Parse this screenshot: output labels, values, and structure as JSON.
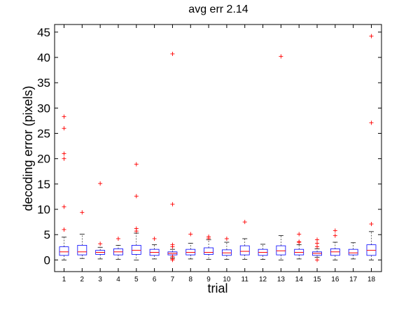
{
  "chart_data": {
    "type": "box",
    "title": "avg err 2.14",
    "xlabel": "trial",
    "ylabel": "decoding error (pixels)",
    "ylim": [
      -2.3,
      46.5
    ],
    "yticks": [
      0,
      5,
      10,
      15,
      20,
      25,
      30,
      35,
      40,
      45
    ],
    "categories": [
      "1",
      "2",
      "3",
      "4",
      "5",
      "6",
      "7",
      "8",
      "9",
      "10",
      "11",
      "12",
      "13",
      "14",
      "15",
      "16",
      "17",
      "18"
    ],
    "boxes": [
      {
        "q1": 0.9,
        "median": 1.6,
        "q3": 2.6,
        "whisker_low": 0,
        "whisker_high": 4.5,
        "outliers": [
          6,
          10.5,
          20,
          21,
          26,
          28.3
        ]
      },
      {
        "q1": 1.0,
        "median": 1.6,
        "q3": 2.9,
        "whisker_low": 0.3,
        "whisker_high": 5.1,
        "outliers": [
          9.4
        ]
      },
      {
        "q1": 1.1,
        "median": 1.5,
        "q3": 1.9,
        "whisker_low": 0.2,
        "whisker_high": 2.5,
        "outliers": [
          3.2,
          15.1
        ]
      },
      {
        "q1": 1.0,
        "median": 1.6,
        "q3": 2.2,
        "whisker_low": 0.1,
        "whisker_high": 2.9,
        "outliers": [
          4.2
        ]
      },
      {
        "q1": 1.1,
        "median": 1.9,
        "q3": 2.9,
        "whisker_low": 0,
        "whisker_high": 5.3,
        "outliers": [
          5.7,
          6.2,
          12.6,
          18.9
        ]
      },
      {
        "q1": 0.9,
        "median": 1.5,
        "q3": 2.1,
        "whisker_low": 0.2,
        "whisker_high": 3.0,
        "outliers": [
          4.2
        ]
      },
      {
        "q1": 1.0,
        "median": 1.3,
        "q3": 1.6,
        "whisker_low": 0.4,
        "whisker_high": 2.1,
        "outliers": [
          0,
          0.2,
          0.7,
          2.6,
          3.0,
          11.0,
          40.7
        ]
      },
      {
        "q1": 1.0,
        "median": 1.5,
        "q3": 2.1,
        "whisker_low": 0.2,
        "whisker_high": 3.3,
        "outliers": [
          5.1
        ]
      },
      {
        "q1": 1.1,
        "median": 1.5,
        "q3": 2.4,
        "whisker_low": 0.1,
        "whisker_high": 4.0,
        "outliers": [
          4.3,
          4.6
        ]
      },
      {
        "q1": 0.9,
        "median": 1.4,
        "q3": 2.0,
        "whisker_low": 0.1,
        "whisker_high": 3.5,
        "outliers": [
          4.2
        ]
      },
      {
        "q1": 1.0,
        "median": 1.7,
        "q3": 2.8,
        "whisker_low": 0.1,
        "whisker_high": 4.2,
        "outliers": [
          7.5
        ]
      },
      {
        "q1": 0.9,
        "median": 1.5,
        "q3": 2.1,
        "whisker_low": 0.1,
        "whisker_high": 3.1,
        "outliers": []
      },
      {
        "q1": 1.0,
        "median": 1.8,
        "q3": 2.8,
        "whisker_low": 0,
        "whisker_high": 4.8,
        "outliers": [
          40.2
        ]
      },
      {
        "q1": 1.0,
        "median": 1.5,
        "q3": 2.1,
        "whisker_low": 0.2,
        "whisker_high": 3.0,
        "outliers": [
          3.5,
          3.6,
          5.1
        ]
      },
      {
        "q1": 0.9,
        "median": 1.3,
        "q3": 1.6,
        "whisker_low": 0.5,
        "whisker_high": 2.2,
        "outliers": [
          0,
          2.6,
          3.3,
          4.0
        ]
      },
      {
        "q1": 0.9,
        "median": 1.6,
        "q3": 2.2,
        "whisker_low": 0,
        "whisker_high": 3.5,
        "outliers": [
          4.8,
          5.8
        ]
      },
      {
        "q1": 1.0,
        "median": 1.4,
        "q3": 2.1,
        "whisker_low": 0.2,
        "whisker_high": 3.4,
        "outliers": []
      },
      {
        "q1": 0.9,
        "median": 1.9,
        "q3": 3.0,
        "whisker_low": 0,
        "whisker_high": 5.6,
        "outliers": [
          7.1,
          27.1,
          44.2
        ]
      }
    ],
    "colors": {
      "box": "#0000ff",
      "median": "#ff0000",
      "outlier": "#ff0000",
      "whisker": "#000000"
    },
    "grid": false,
    "legend": "none"
  }
}
